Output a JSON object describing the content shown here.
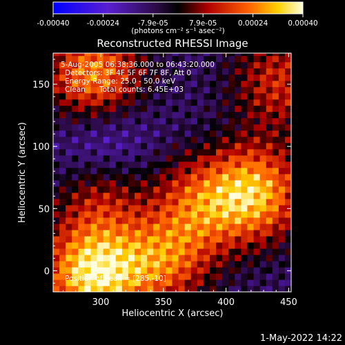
{
  "colorbar": {
    "ticks": [
      "-0.00040",
      "-0.00024",
      "-7.9e-05",
      "7.9e-05",
      "0.00024",
      "0.00040"
    ],
    "unit_label": "(photons cm⁻² s⁻¹ asec⁻²)",
    "range": [
      -0.0004,
      0.0004
    ]
  },
  "overlay": {
    "time_range": "5-Aug-2005 06:38:36.000 to 06:43:20.000",
    "detectors": "Detectors: 3F 4F 5F 6F 7F 8F, Att 0",
    "energy": "Energy Range: 25.0 - 50.0 keV",
    "method": "Clean",
    "counts": "Total counts: 6.45E+03",
    "peak": "Position of Peak = [285,-10]"
  },
  "footer": {
    "timestamp": "1-May-2022 14:22"
  },
  "chart_data": {
    "type": "heatmap",
    "title": "Reconstructed RHESSI Image",
    "xlabel": "Heliocentric X (arcsec)",
    "ylabel": "Heliocentric Y (arcsec)",
    "xlim": [
      262,
      452
    ],
    "ylim": [
      -17,
      175
    ],
    "xticks": [
      300,
      350,
      400,
      450
    ],
    "yticks": [
      0,
      50,
      100,
      150
    ],
    "hot_regions": [
      {
        "x": 292,
        "y": 155,
        "level": 0.0003
      },
      {
        "x": 420,
        "y": 60,
        "level": 0.00034
      },
      {
        "x": 290,
        "y": -5,
        "level": 0.0004
      },
      {
        "x": 345,
        "y": 10,
        "level": 0.0003
      },
      {
        "x": 370,
        "y": 50,
        "level": 0.0002
      },
      {
        "x": 300,
        "y": 60,
        "level": 0.00018
      },
      {
        "x": 440,
        "y": 150,
        "level": 0.00016
      }
    ],
    "background_level": -0.0001,
    "cold_regions": [
      {
        "x": 300,
        "y": 95,
        "level": -0.0003
      },
      {
        "x": 340,
        "y": 35,
        "level": -0.00028
      }
    ]
  }
}
